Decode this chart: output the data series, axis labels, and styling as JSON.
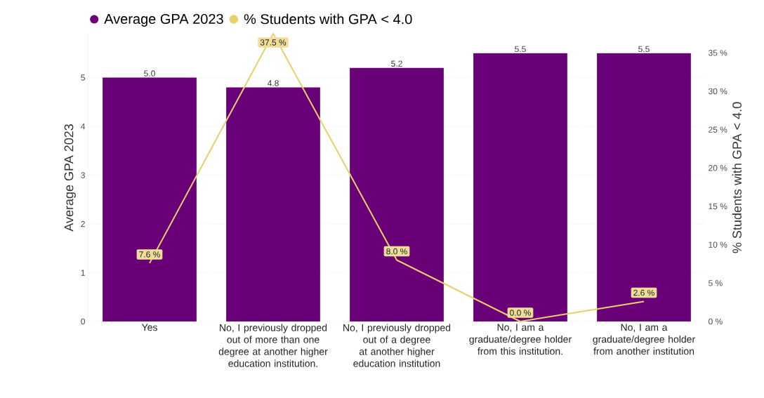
{
  "chart_data": {
    "type": "bar",
    "categories": [
      "Yes",
      "No, I previously dropped out of more than one degree at another higher education institution.",
      "No, I previously dropped out of a degree at another higher education institution",
      "No, I am a graduate/degree holder from this institution.",
      "No, I am a graduate/degree holder from another institution"
    ],
    "series": [
      {
        "name": "Average GPA 2023",
        "color": "#6a0078",
        "values": [
          5.0,
          4.8,
          5.2,
          5.5,
          5.5
        ],
        "value_labels": [
          "5.0",
          "4.8",
          "5.2",
          "5.5",
          "5.5"
        ]
      },
      {
        "name": "% Students with GPA < 4.0",
        "type": "line",
        "axis": "y2",
        "color": "#e8d06a",
        "values": [
          7.6,
          37.5,
          8.0,
          0.0,
          2.6
        ],
        "value_labels": [
          "7.6 %",
          "37.5 %",
          "8.0 %",
          "0.0 %",
          "2.6 %"
        ]
      }
    ],
    "ylabel": "Average GPA 2023",
    "y2label": "% Students with GPA < 4.0",
    "ylim": [
      0,
      5.9
    ],
    "yticks": [
      0,
      1,
      2,
      3,
      4,
      5
    ],
    "y2lim": [
      0,
      37.5
    ],
    "y2ticks": [
      {
        "value": 0,
        "label": "0 %"
      },
      {
        "value": 5,
        "label": "5 %"
      },
      {
        "value": 10,
        "label": "10 %"
      },
      {
        "value": 15,
        "label": "15 %"
      },
      {
        "value": 20,
        "label": "20 %"
      },
      {
        "value": 25,
        "label": "25 %"
      },
      {
        "value": 30,
        "label": "30 %"
      },
      {
        "value": 35,
        "label": "35 %"
      }
    ],
    "grid": "y",
    "legend": "top left",
    "marker": "none"
  }
}
